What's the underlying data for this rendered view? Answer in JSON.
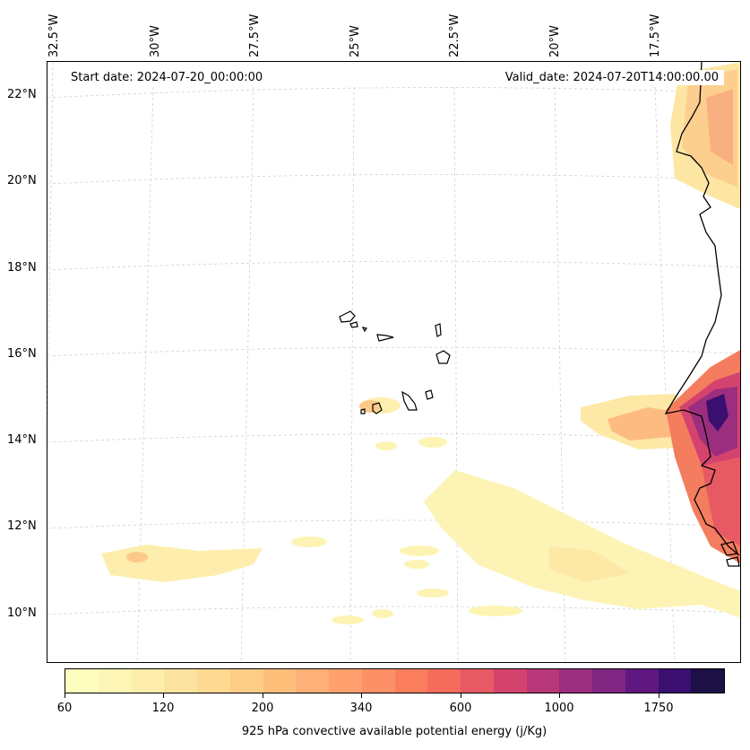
{
  "map": {
    "start_date": "Start date: 2024-07-20_00:00:00",
    "valid_date": "Valid_date: 2024-07-20T14:00:00.00",
    "lon_labels": [
      "32.5°W",
      "30°W",
      "27.5°W",
      "25°W",
      "22.5°W",
      "20°W",
      "17.5°W"
    ],
    "lat_labels": [
      "22°N",
      "20°N",
      "18°N",
      "16°N",
      "14°N",
      "12°N",
      "10°N"
    ]
  },
  "colorbar": {
    "title": "925 hPa convective available potential energy (j/Kg)",
    "tick_labels": [
      "60",
      "120",
      "200",
      "340",
      "600",
      "1000",
      "1750"
    ],
    "colors": [
      "#fcfdbf",
      "#fcf5b6",
      "#fcedaa",
      "#fde3a0",
      "#fed992",
      "#fecd86",
      "#febf7b",
      "#feb078",
      "#fea16e",
      "#fc9066",
      "#fa7d5e",
      "#f56b5c",
      "#e75a63",
      "#d4436e",
      "#b73779",
      "#9c2e7f",
      "#7f2582",
      "#5f187f",
      "#3b0f70",
      "#1c1044"
    ],
    "accent_stroke": "#000000"
  }
}
